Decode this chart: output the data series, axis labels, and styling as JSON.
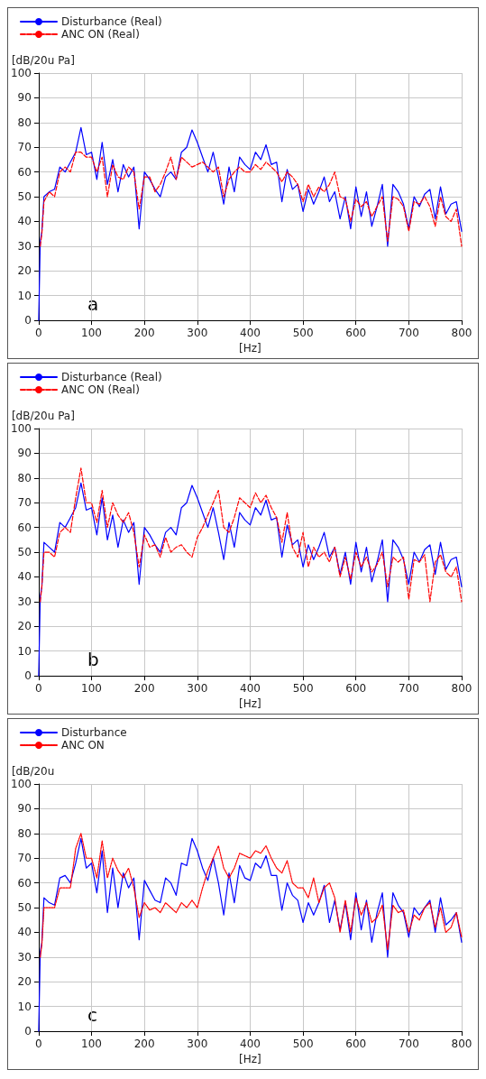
{
  "chart_data": [
    {
      "type": "line",
      "xlabel": "[Hz]",
      "ylabel": "[dB/20u Pa]",
      "annotations": [
        "a"
      ],
      "legend": "top left",
      "grid": true,
      "xlim": [
        0,
        800
      ],
      "ylim": [
        0,
        100
      ],
      "xticks": [
        0,
        100,
        200,
        300,
        400,
        500,
        600,
        700,
        800
      ],
      "yticks": [
        0,
        10,
        20,
        30,
        40,
        50,
        60,
        70,
        80,
        90,
        100
      ],
      "x": [
        0,
        3,
        6,
        10,
        20,
        30,
        40,
        50,
        60,
        70,
        80,
        90,
        100,
        110,
        120,
        130,
        140,
        150,
        160,
        170,
        180,
        190,
        200,
        210,
        220,
        230,
        240,
        250,
        260,
        270,
        280,
        290,
        300,
        310,
        320,
        330,
        340,
        350,
        360,
        370,
        380,
        390,
        400,
        410,
        420,
        430,
        440,
        450,
        460,
        470,
        480,
        490,
        500,
        510,
        520,
        530,
        540,
        550,
        560,
        570,
        580,
        590,
        600,
        610,
        620,
        630,
        640,
        650,
        660,
        670,
        680,
        690,
        700,
        710,
        720,
        730,
        740,
        750,
        760,
        770,
        780,
        790,
        800
      ],
      "series": [
        {
          "name": "Disturbance (Real)",
          "color": "#0000ff",
          "line_style": "solid",
          "values": [
            0,
            32,
            36,
            50,
            52,
            53,
            62,
            60,
            64,
            68,
            78,
            67,
            68,
            57,
            72,
            55,
            65,
            52,
            63,
            58,
            62,
            37,
            60,
            57,
            53,
            50,
            58,
            60,
            57,
            68,
            70,
            77,
            72,
            66,
            60,
            68,
            58,
            47,
            62,
            52,
            66,
            63,
            61,
            68,
            65,
            71,
            63,
            64,
            48,
            61,
            53,
            55,
            44,
            53,
            47,
            52,
            58,
            48,
            52,
            41,
            50,
            37,
            54,
            42,
            52,
            38,
            46,
            55,
            30,
            55,
            52,
            47,
            37,
            50,
            46,
            51,
            53,
            41,
            54,
            43,
            47,
            48,
            36
          ]
        },
        {
          "name": "ANC ON (Real)",
          "color": "#ff0000",
          "line_style": "dashed",
          "values": [
            null,
            30,
            35,
            48,
            52,
            50,
            60,
            62,
            60,
            68,
            68,
            66,
            66,
            60,
            66,
            50,
            63,
            58,
            57,
            62,
            60,
            45,
            58,
            58,
            52,
            55,
            60,
            66,
            57,
            66,
            64,
            62,
            63,
            64,
            62,
            60,
            62,
            50,
            57,
            60,
            62,
            60,
            60,
            63,
            61,
            64,
            62,
            60,
            56,
            60,
            58,
            55,
            48,
            55,
            50,
            54,
            52,
            55,
            60,
            50,
            49,
            40,
            49,
            46,
            48,
            42,
            46,
            50,
            32,
            50,
            49,
            46,
            36,
            48,
            47,
            50,
            46,
            38,
            50,
            42,
            40,
            45,
            30
          ]
        }
      ]
    },
    {
      "type": "line",
      "xlabel": "[Hz]",
      "ylabel": "[dB/20u Pa]",
      "annotations": [
        "b"
      ],
      "legend": "top left",
      "grid": true,
      "xlim": [
        0,
        800
      ],
      "ylim": [
        0,
        100
      ],
      "xticks": [
        0,
        100,
        200,
        300,
        400,
        500,
        600,
        700,
        800
      ],
      "yticks": [
        0,
        10,
        20,
        30,
        40,
        50,
        60,
        70,
        80,
        90,
        100
      ],
      "x": [
        0,
        3,
        6,
        10,
        20,
        30,
        40,
        50,
        60,
        70,
        80,
        90,
        100,
        110,
        120,
        130,
        140,
        150,
        160,
        170,
        180,
        190,
        200,
        210,
        220,
        230,
        240,
        250,
        260,
        270,
        280,
        290,
        300,
        310,
        320,
        330,
        340,
        350,
        360,
        370,
        380,
        390,
        400,
        410,
        420,
        430,
        440,
        450,
        460,
        470,
        480,
        490,
        500,
        510,
        520,
        530,
        540,
        550,
        560,
        570,
        580,
        590,
        600,
        610,
        620,
        630,
        640,
        650,
        660,
        670,
        680,
        690,
        700,
        710,
        720,
        730,
        740,
        750,
        760,
        770,
        780,
        790,
        800
      ],
      "series": [
        {
          "name": "Disturbance (Real)",
          "color": "#0000ff",
          "line_style": "solid",
          "values": [
            0,
            32,
            36,
            54,
            52,
            50,
            62,
            60,
            64,
            68,
            78,
            67,
            68,
            57,
            72,
            55,
            65,
            52,
            63,
            58,
            62,
            37,
            60,
            57,
            53,
            50,
            58,
            60,
            57,
            68,
            70,
            77,
            72,
            66,
            60,
            68,
            58,
            47,
            62,
            52,
            66,
            63,
            61,
            68,
            65,
            71,
            63,
            64,
            48,
            61,
            53,
            55,
            44,
            53,
            47,
            52,
            58,
            48,
            52,
            41,
            50,
            37,
            54,
            42,
            52,
            38,
            46,
            55,
            30,
            55,
            52,
            47,
            37,
            50,
            46,
            51,
            53,
            41,
            54,
            43,
            47,
            48,
            36
          ]
        },
        {
          "name": "ANC ON (Real)",
          "color": "#ff0000",
          "line_style": "dashed",
          "values": [
            null,
            30,
            36,
            50,
            50,
            48,
            58,
            60,
            58,
            72,
            84,
            70,
            70,
            62,
            75,
            60,
            70,
            65,
            62,
            66,
            58,
            44,
            57,
            52,
            53,
            48,
            56,
            50,
            52,
            53,
            50,
            48,
            56,
            60,
            65,
            70,
            75,
            60,
            58,
            64,
            72,
            70,
            68,
            74,
            70,
            73,
            68,
            64,
            54,
            66,
            52,
            48,
            58,
            44,
            52,
            48,
            50,
            46,
            52,
            40,
            48,
            39,
            50,
            44,
            48,
            42,
            45,
            50,
            36,
            48,
            46,
            48,
            31,
            47,
            46,
            49,
            30,
            46,
            49,
            42,
            40,
            44,
            30
          ]
        }
      ]
    },
    {
      "type": "line",
      "xlabel": "[Hz]",
      "ylabel": "[dB/20u",
      "annotations": [
        "c"
      ],
      "legend": "top left",
      "grid": true,
      "xlim": [
        0,
        800
      ],
      "ylim": [
        0,
        100
      ],
      "xticks": [
        0,
        100,
        200,
        300,
        400,
        500,
        600,
        700,
        800
      ],
      "yticks": [
        0,
        10,
        20,
        30,
        40,
        50,
        60,
        70,
        80,
        90,
        100
      ],
      "x": [
        0,
        3,
        6,
        10,
        20,
        30,
        40,
        50,
        60,
        70,
        80,
        90,
        100,
        110,
        120,
        130,
        140,
        150,
        160,
        170,
        180,
        190,
        200,
        210,
        220,
        230,
        240,
        250,
        260,
        270,
        280,
        290,
        300,
        310,
        320,
        330,
        340,
        350,
        360,
        370,
        380,
        390,
        400,
        410,
        420,
        430,
        440,
        450,
        460,
        470,
        480,
        490,
        500,
        510,
        520,
        530,
        540,
        550,
        560,
        570,
        580,
        590,
        600,
        610,
        620,
        630,
        640,
        650,
        660,
        670,
        680,
        690,
        700,
        710,
        720,
        730,
        740,
        750,
        760,
        770,
        780,
        790,
        800
      ],
      "series": [
        {
          "name": "Disturbance",
          "color": "#0000ff",
          "line_style": "solid",
          "values": [
            0,
            32,
            36,
            54,
            52,
            51,
            62,
            63,
            60,
            68,
            78,
            66,
            68,
            56,
            73,
            48,
            66,
            50,
            64,
            58,
            62,
            37,
            61,
            57,
            53,
            52,
            62,
            60,
            55,
            68,
            67,
            78,
            73,
            66,
            61,
            70,
            60,
            47,
            64,
            52,
            67,
            62,
            61,
            68,
            66,
            71,
            63,
            63,
            49,
            60,
            55,
            53,
            44,
            52,
            47,
            52,
            59,
            44,
            53,
            41,
            52,
            37,
            56,
            41,
            53,
            36,
            48,
            56,
            30,
            56,
            51,
            48,
            38,
            50,
            47,
            50,
            53,
            40,
            54,
            43,
            45,
            48,
            36
          ]
        },
        {
          "name": "ANC ON",
          "color": "#ff0000",
          "line_style": "dotted",
          "values": [
            null,
            30,
            35,
            50,
            50,
            50,
            58,
            58,
            58,
            74,
            80,
            70,
            70,
            62,
            77,
            62,
            70,
            65,
            62,
            66,
            58,
            46,
            52,
            49,
            50,
            48,
            52,
            50,
            48,
            52,
            50,
            53,
            50,
            58,
            65,
            70,
            75,
            66,
            62,
            66,
            72,
            71,
            70,
            73,
            72,
            75,
            70,
            66,
            64,
            69,
            60,
            58,
            58,
            54,
            62,
            52,
            58,
            60,
            54,
            40,
            53,
            40,
            54,
            47,
            52,
            44,
            46,
            51,
            33,
            51,
            48,
            49,
            40,
            47,
            45,
            50,
            52,
            42,
            50,
            40,
            42,
            48,
            38
          ]
        }
      ]
    }
  ]
}
